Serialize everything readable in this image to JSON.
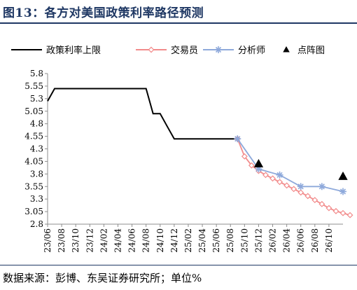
{
  "figure_title": "图13：各方对美国政策利率路径预测",
  "source_note": "数据来源：彭博、东吴证券研究所；单位%",
  "colors": {
    "policy": "#000000",
    "traders": "#f28b8b",
    "analysts": "#8ea9db",
    "dots": "#000000",
    "title": "#1f3864"
  },
  "legend": [
    {
      "key": "policy",
      "label": "政策利率上限",
      "marker": "line"
    },
    {
      "key": "traders",
      "label": "交易员",
      "marker": "diamond-line"
    },
    {
      "key": "analysts",
      "label": "分析师",
      "marker": "asterisk-line"
    },
    {
      "key": "dots",
      "label": "点阵图",
      "marker": "triangle"
    }
  ],
  "chart_data": {
    "type": "line",
    "title": "",
    "xlabel": "",
    "ylabel": "",
    "ylim": [
      2.8,
      5.8
    ],
    "yticks": [
      2.8,
      3.05,
      3.3,
      3.55,
      3.8,
      4.05,
      4.3,
      4.55,
      4.8,
      5.05,
      5.3,
      5.55,
      5.8
    ],
    "xlim": [
      "23/06",
      "26/12"
    ],
    "xticks": [
      "23/06",
      "23/08",
      "23/10",
      "23/12",
      "24/02",
      "24/04",
      "24/06",
      "24/08",
      "24/10",
      "24/12",
      "25/02",
      "25/04",
      "25/06",
      "25/08",
      "25/10",
      "25/12",
      "26/02",
      "26/04",
      "26/06",
      "26/08",
      "26/10"
    ],
    "grid": false,
    "legend_position": "top",
    "series": [
      {
        "key": "policy",
        "name": "政策利率上限",
        "style": "step",
        "points": [
          [
            "23/06",
            5.25
          ],
          [
            "23/07",
            5.5
          ],
          [
            "24/08",
            5.5
          ],
          [
            "24/09",
            5.0
          ],
          [
            "24/10",
            5.0
          ],
          [
            "24/11",
            4.75
          ],
          [
            "24/12",
            4.5
          ],
          [
            "25/09",
            4.5
          ]
        ]
      },
      {
        "key": "traders",
        "name": "交易员",
        "style": "line-diamond",
        "points": [
          [
            "25/09",
            4.5
          ],
          [
            "25/10",
            4.15
          ],
          [
            "25/11",
            3.97
          ],
          [
            "25/12",
            3.86
          ],
          [
            "26/01",
            3.78
          ],
          [
            "26/02",
            3.71
          ],
          [
            "26/03",
            3.64
          ],
          [
            "26/04",
            3.57
          ],
          [
            "26/05",
            3.5
          ],
          [
            "26/06",
            3.43
          ],
          [
            "26/07",
            3.36
          ],
          [
            "26/08",
            3.28
          ],
          [
            "26/09",
            3.2
          ],
          [
            "26/10",
            3.12
          ],
          [
            "26/11",
            3.06
          ],
          [
            "26/12",
            3.02
          ],
          [
            "27/01",
            2.98
          ]
        ]
      },
      {
        "key": "analysts",
        "name": "分析师",
        "style": "line-asterisk",
        "points": [
          [
            "25/09",
            4.5
          ],
          [
            "25/12",
            3.9
          ],
          [
            "26/03",
            3.78
          ],
          [
            "26/06",
            3.55
          ],
          [
            "26/09",
            3.55
          ],
          [
            "26/12",
            3.45
          ]
        ]
      },
      {
        "key": "dots",
        "name": "点阵图",
        "style": "triangle",
        "points": [
          [
            "25/12",
            4.0
          ],
          [
            "26/12",
            3.75
          ]
        ]
      }
    ]
  }
}
